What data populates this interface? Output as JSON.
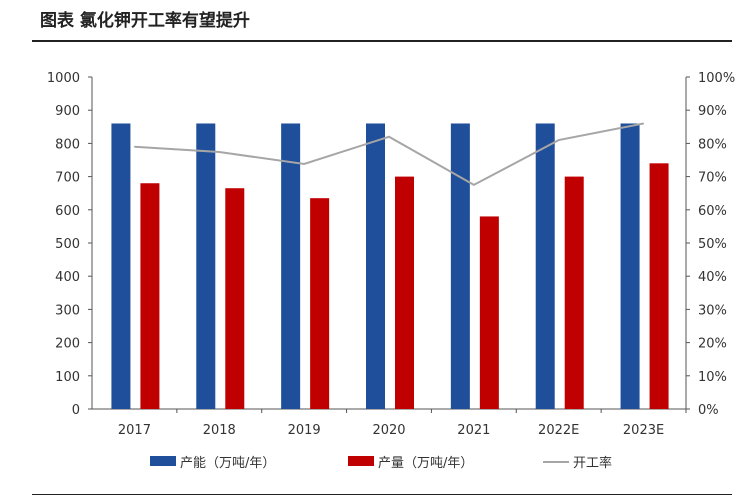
{
  "title": "图表 氯化钾开工率有望提升",
  "chart_data": {
    "type": "bar",
    "categories": [
      "2017",
      "2018",
      "2019",
      "2020",
      "2021",
      "2022E",
      "2023E"
    ],
    "series": [
      {
        "name": "产能（万吨/年）",
        "type": "bar",
        "axis": "left",
        "color": "#1F4E9A",
        "values": [
          860,
          860,
          860,
          860,
          860,
          860,
          860
        ]
      },
      {
        "name": "产量（万吨/年）",
        "type": "bar",
        "axis": "left",
        "color": "#C00000",
        "values": [
          680,
          665,
          635,
          700,
          580,
          700,
          740
        ]
      },
      {
        "name": "开工率",
        "type": "line",
        "axis": "right",
        "color": "#A6A6A6",
        "values": [
          79,
          77.4,
          73.8,
          82,
          67.5,
          81,
          86
        ]
      }
    ],
    "ylim": [
      0,
      1000
    ],
    "yticks": [
      "0",
      "100",
      "200",
      "300",
      "400",
      "500",
      "600",
      "700",
      "800",
      "900",
      "1000"
    ],
    "y2lim": [
      0,
      100
    ],
    "y2ticks": [
      "0%",
      "10%",
      "20%",
      "30%",
      "40%",
      "50%",
      "60%",
      "70%",
      "80%",
      "90%",
      "100%"
    ],
    "grid": false,
    "legend": "bottom"
  }
}
